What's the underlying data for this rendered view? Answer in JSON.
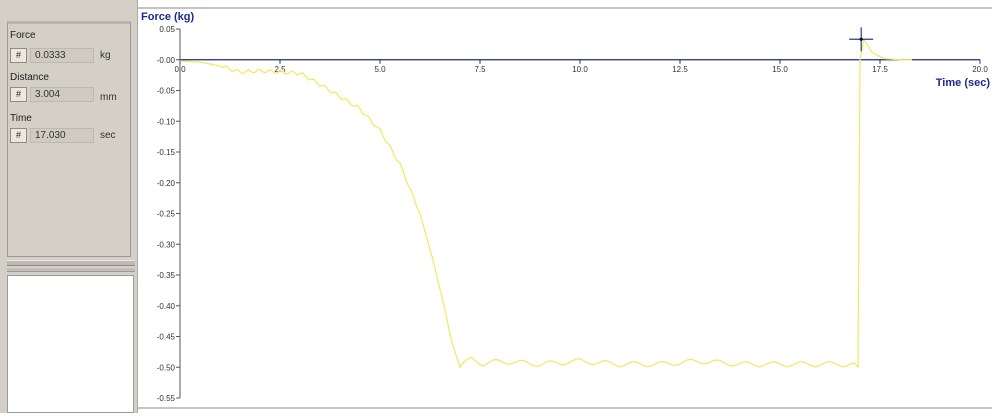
{
  "readouts": {
    "force": {
      "label": "Force",
      "button": "#",
      "value": "0.0333",
      "unit": "kg"
    },
    "distance": {
      "label": "Distance",
      "button": "#",
      "value": "3.004",
      "unit": "mm"
    },
    "time": {
      "label": "Time",
      "button": "#",
      "value": "17.030",
      "unit": "sec"
    }
  },
  "chart_data": {
    "type": "line",
    "ylabel": "Force (kg)",
    "xlabel": "Time (sec)",
    "xlim": [
      0,
      20
    ],
    "ylim": [
      -0.55,
      0.05
    ],
    "x_ticks": [
      "0.0",
      "2.5",
      "5.0",
      "7.5",
      "10.0",
      "12.5",
      "15.0",
      "17.5",
      "20.0"
    ],
    "y_ticks": [
      "0.05",
      "-0.00",
      "-0.05",
      "-0.10",
      "-0.15",
      "-0.20",
      "-0.25",
      "-0.30",
      "-0.35",
      "-0.40",
      "-0.45",
      "-0.50",
      "-0.55"
    ],
    "line_color": "#f2e96a",
    "axis_color": "#1c2a8c",
    "cursor": {
      "x": 17.03,
      "y": 0.0333
    },
    "series": [
      {
        "x": [
          0,
          0.5,
          1.0,
          1.5,
          2.0,
          2.5,
          3.0,
          3.5,
          4.0,
          4.5,
          5.0,
          5.5,
          6.0,
          6.3,
          6.6,
          6.8,
          7.0,
          7.3,
          7.6,
          8.0,
          9.0,
          10.0,
          11.0,
          12.0,
          13.0,
          14.0,
          15.0,
          16.0,
          16.8,
          16.95,
          17.0,
          17.1,
          17.3,
          17.6,
          18.0,
          18.3
        ],
        "y": [
          -0.002,
          -0.004,
          -0.01,
          -0.02,
          -0.018,
          -0.02,
          -0.022,
          -0.04,
          -0.06,
          -0.08,
          -0.115,
          -0.17,
          -0.25,
          -0.32,
          -0.4,
          -0.46,
          -0.5,
          -0.485,
          -0.495,
          -0.49,
          -0.495,
          -0.49,
          -0.495,
          -0.495,
          -0.49,
          -0.495,
          -0.495,
          -0.495,
          -0.495,
          -0.5,
          0.0,
          0.033,
          0.012,
          0.002,
          0.0,
          0.0
        ]
      }
    ]
  }
}
